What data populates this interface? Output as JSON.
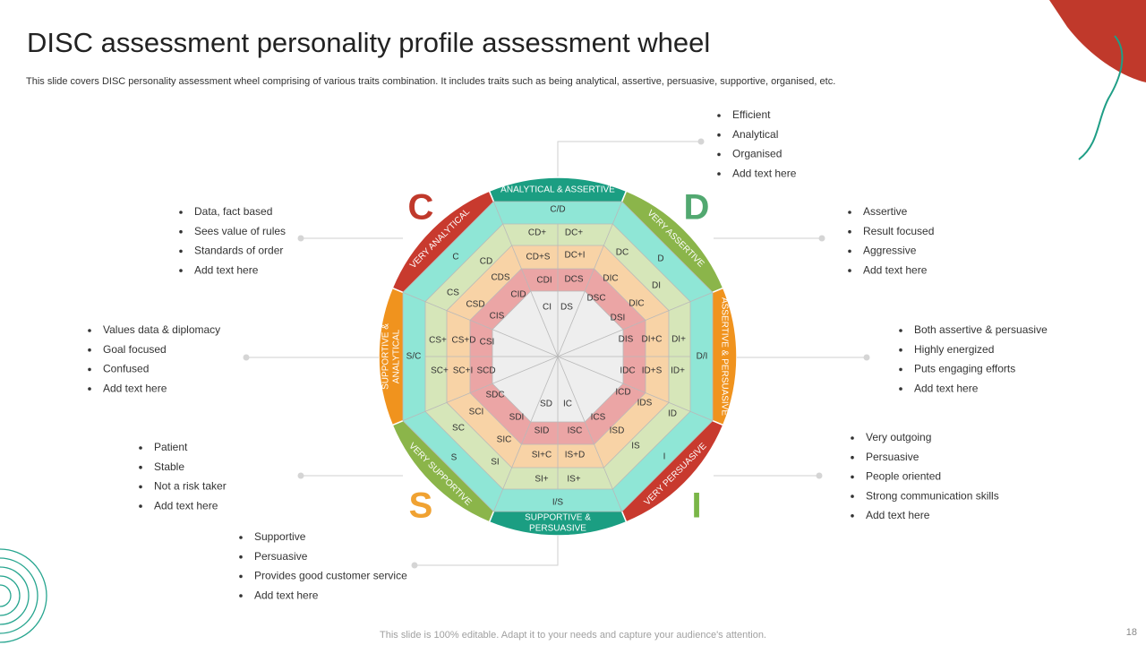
{
  "header": {
    "title": "DISC assessment personality profile assessment wheel",
    "subtitle": "This slide covers DISC personality assessment wheel comprising of various traits combination. It includes traits such as being analytical, assertive, persuasive, supportive, organised, etc."
  },
  "letters": [
    "C",
    "D",
    "S",
    "I"
  ],
  "ring_labels": [
    [
      "ANALYTICAL & ASSERTIVE"
    ],
    [
      "VERY ASSERTIVE"
    ],
    [
      "ASSERTIVE & PERSUASIVE"
    ],
    [
      "VERY PERSUASIVE"
    ],
    [
      "SUPPORTIVE  &",
      "PERSUASIVE"
    ],
    [
      "VERY SUPPORTIVE"
    ],
    [
      "SUPPORTIVE &",
      "ANALYTICAL"
    ],
    [
      "VERY ANALYTICAL"
    ]
  ],
  "cells": [
    "C/D",
    "CD+",
    "DC+",
    "CD+S",
    "DC+I",
    "CDI",
    "DCS",
    "CI",
    "DS",
    "C",
    "CD",
    "CDS",
    "CID",
    "CIS",
    "CS",
    "CSD",
    "DC",
    "D",
    "DIC",
    "DI",
    "DSC",
    "DIC",
    "DSI",
    "S/C",
    "CS+",
    "CS+D",
    "CSI",
    "SC+",
    "SC+I",
    "SCD",
    "DIS",
    "DI+C",
    "DI+",
    "D/I",
    "IDC",
    "ID+S",
    "ID+",
    "SDC",
    "SCI",
    "SC",
    "SDI",
    "SD",
    "IC",
    "ICD",
    "IDS",
    "ID",
    "ICS",
    "ISD",
    "IS",
    "SIC",
    "SID",
    "ISC",
    "S",
    "SI",
    "SI+C",
    "IS+D",
    "I",
    "SI+",
    "IS+",
    "I/S"
  ],
  "lists": [
    [
      "Efficient",
      "Analytical",
      "Organised",
      "Add text here"
    ],
    [
      "Data, fact based",
      "Sees value of rules",
      "Standards of order",
      "Add text here"
    ],
    [
      "Assertive",
      "Result focused",
      "Aggressive",
      "Add text here"
    ],
    [
      "Values data & diplomacy",
      "Goal focused",
      "Confused",
      "Add text here"
    ],
    [
      "Both assertive & persuasive",
      "Highly energized",
      "Puts engaging efforts",
      "Add text here"
    ],
    [
      "Patient",
      "Stable",
      "Not a risk taker",
      "Add text here"
    ],
    [
      "Very outgoing",
      "Persuasive",
      "People oriented",
      "Strong communication skills",
      "Add text here"
    ],
    [
      "Supportive",
      "Persuasive",
      "Provides good customer service",
      "Add text here"
    ]
  ],
  "footer": "This slide is 100% editable. Adapt it to your needs and capture your audience's attention.",
  "page_number": "18"
}
